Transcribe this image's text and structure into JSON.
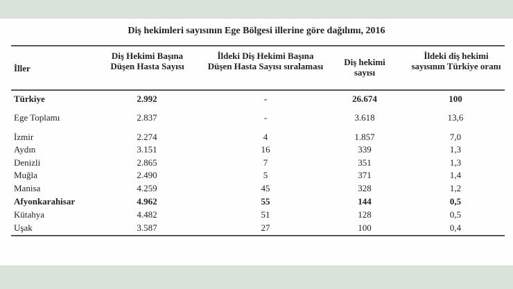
{
  "title": "Diş hekimleri sayısının Ege Bölgesi illerine göre dağılımı, 2016",
  "headers": [
    "İller",
    "Diş Hekimi Başına Düşen Hasta Sayısı",
    "İldeki Diş Hekimi Başına Düşen Hasta Sayısı sıralaması",
    "Diş hekimi sayısı",
    "İldeki diş hekimi sayısının Türkiye oranı"
  ],
  "rows": [
    {
      "il": "Türkiye",
      "hasta": "2.992",
      "sira": "-",
      "sayi": "26.674",
      "oran": "100",
      "bold": true
    },
    {
      "il": "Ege Toplamı",
      "hasta": "2.837",
      "sira": "-",
      "sayi": "3.618",
      "oran": "13,6",
      "bold": false
    },
    {
      "il": "İzmir",
      "hasta": "2.274",
      "sira": "4",
      "sayi": "1.857",
      "oran": "7,0",
      "bold": false
    },
    {
      "il": "Aydın",
      "hasta": "3.151",
      "sira": "16",
      "sayi": "339",
      "oran": "1,3",
      "bold": false
    },
    {
      "il": "Denizli",
      "hasta": "2.865",
      "sira": "7",
      "sayi": "351",
      "oran": "1,3",
      "bold": false
    },
    {
      "il": "Muğla",
      "hasta": "2.490",
      "sira": "5",
      "sayi": "371",
      "oran": "1,4",
      "bold": false
    },
    {
      "il": "Manisa",
      "hasta": "4.259",
      "sira": "45",
      "sayi": "328",
      "oran": "1,2",
      "bold": false
    },
    {
      "il": "Afyonkarahisar",
      "hasta": "4.962",
      "sira": "55",
      "sayi": "144",
      "oran": "0,5",
      "bold": true
    },
    {
      "il": "Kütahya",
      "hasta": "4.482",
      "sira": "51",
      "sayi": "128",
      "oran": "0,5",
      "bold": false
    },
    {
      "il": "Uşak",
      "hasta": "3.587",
      "sira": "27",
      "sayi": "100",
      "oran": "0,4",
      "bold": false
    }
  ]
}
